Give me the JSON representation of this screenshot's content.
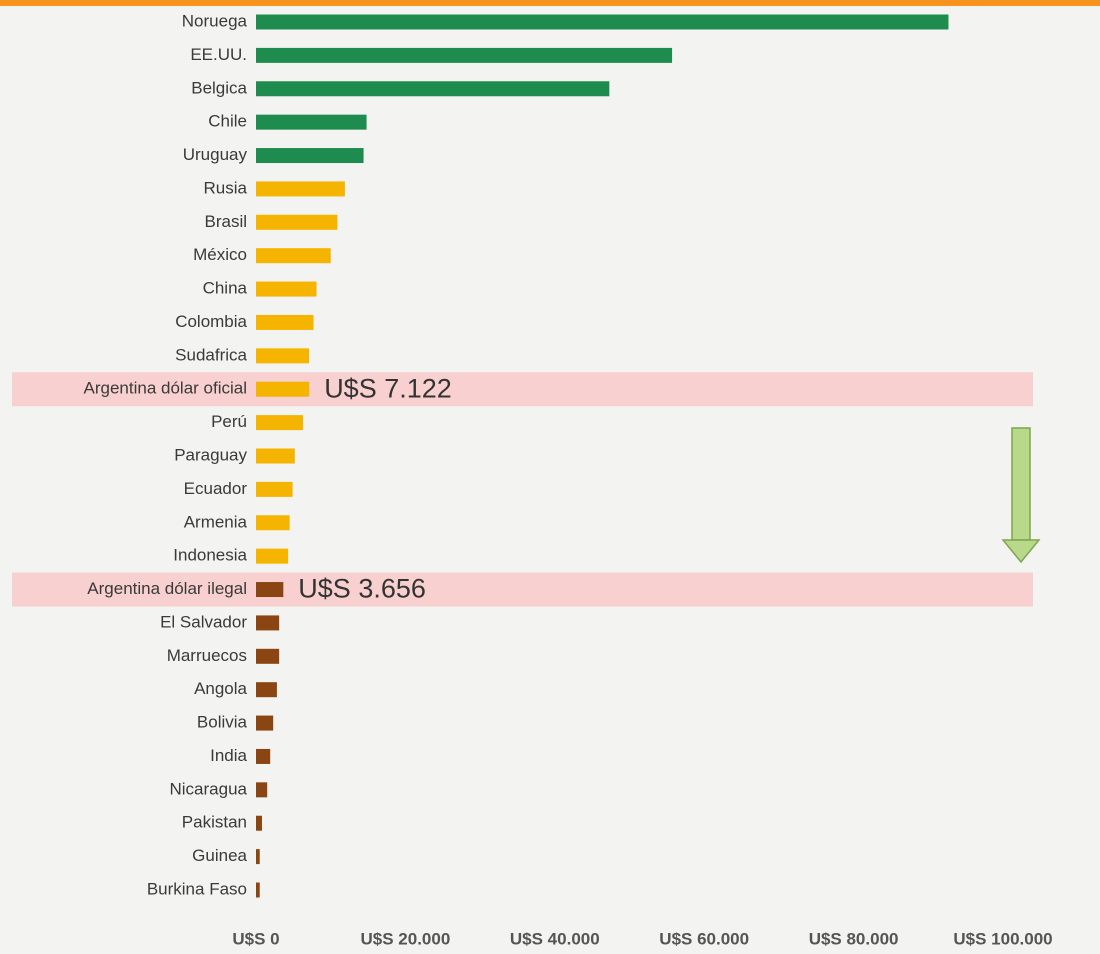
{
  "chart_data": {
    "type": "bar",
    "orientation": "horizontal",
    "categories": [
      "Noruega",
      "EE.UU.",
      "Belgica",
      "Chile",
      "Uruguay",
      "Rusia",
      "Brasil",
      "México",
      "China",
      "Colombia",
      "Sudafrica",
      "Argentina dólar oficial",
      "Perú",
      "Paraguay",
      "Ecuador",
      "Armenia",
      "Indonesia",
      "Argentina dólar ilegal",
      "El Salvador",
      "Marruecos",
      "Angola",
      "Bolivia",
      "India",
      "Nicaragua",
      "Pakistan",
      "Guinea",
      "Burkina Faso"
    ],
    "values": [
      92700,
      55700,
      47300,
      14800,
      14400,
      11900,
      10900,
      10000,
      8100,
      7700,
      7100,
      7122,
      6300,
      5200,
      4900,
      4500,
      4300,
      3656,
      3100,
      3100,
      2800,
      2300,
      1900,
      1500,
      800,
      500,
      500
    ],
    "value_labels": [
      null,
      null,
      null,
      null,
      null,
      null,
      null,
      null,
      null,
      null,
      null,
      "U$S 7.122",
      null,
      null,
      null,
      null,
      null,
      "U$S 3.656",
      null,
      null,
      null,
      null,
      null,
      null,
      null,
      null,
      null
    ],
    "colors": [
      "#1e8c4e",
      "#1e8c4e",
      "#1e8c4e",
      "#1e8c4e",
      "#1e8c4e",
      "#f5b400",
      "#f5b400",
      "#f5b400",
      "#f5b400",
      "#f5b400",
      "#f5b400",
      "#f5b400",
      "#f5b400",
      "#f5b400",
      "#f5b400",
      "#f5b400",
      "#f5b400",
      "#8b4513",
      "#8b4513",
      "#8b4513",
      "#8b4513",
      "#8b4513",
      "#8b4513",
      "#8b4513",
      "#8b4513",
      "#8b4513",
      "#8b4513"
    ],
    "highlight": [
      11,
      17
    ],
    "xlim": [
      0,
      100000
    ],
    "xticks": [
      {
        "value": 0,
        "label": "U$S 0"
      },
      {
        "value": 20000,
        "label": "U$S 20.000"
      },
      {
        "value": 40000,
        "label": "U$S 40.000"
      },
      {
        "value": 60000,
        "label": "U$S 60.000"
      },
      {
        "value": 80000,
        "label": "U$S 80.000"
      },
      {
        "value": 100000,
        "label": "U$S 100.000"
      }
    ]
  }
}
